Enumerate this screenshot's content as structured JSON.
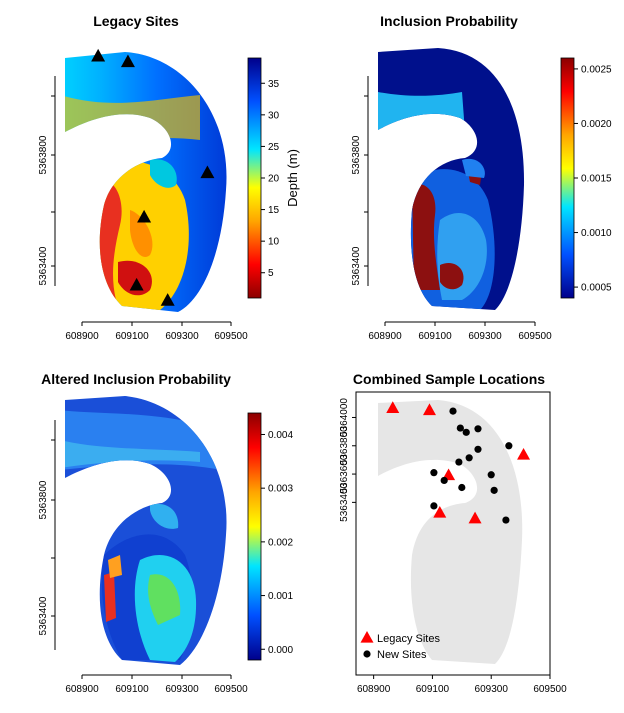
{
  "chart_data": [
    {
      "type": "heatmap",
      "title": "Legacy Sites",
      "x_ticks": [
        "608900",
        "609100",
        "609300",
        "609500"
      ],
      "y_ticks": [
        "5363400",
        "5363800"
      ],
      "colorbar_label": "Depth (m)",
      "colorbar_ticks": [
        "5",
        "10",
        "15",
        "20",
        "25",
        "30",
        "35"
      ],
      "colorbar_range": [
        1,
        39
      ],
      "points": [
        {
          "x": 608965,
          "y": 5364155
        },
        {
          "x": 609085,
          "y": 5364135
        },
        {
          "x": 609405,
          "y": 5363735
        },
        {
          "x": 609150,
          "y": 5363575
        },
        {
          "x": 609120,
          "y": 5363330
        },
        {
          "x": 609245,
          "y": 5363275
        }
      ],
      "point_symbol": "black-triangle"
    },
    {
      "type": "heatmap",
      "title": "Inclusion Probability",
      "x_ticks": [
        "608900",
        "609100",
        "609300",
        "609500"
      ],
      "y_ticks": [
        "5363400",
        "5363800"
      ],
      "colorbar_ticks": [
        "0.0005",
        "0.0010",
        "0.0015",
        "0.0020",
        "0.0025"
      ],
      "colorbar_range": [
        0.0004,
        0.0026
      ]
    },
    {
      "type": "heatmap",
      "title": "Altered Inclusion Probability",
      "x_ticks": [
        "608900",
        "609100",
        "609300",
        "609500"
      ],
      "y_ticks": [
        "5363400",
        "5363800"
      ],
      "colorbar_ticks": [
        "0.000",
        "0.001",
        "0.002",
        "0.003",
        "0.004"
      ],
      "colorbar_range": [
        -0.0002,
        0.0044
      ]
    },
    {
      "type": "scatter",
      "title": "Combined Sample Locations",
      "x_ticks": [
        "608900",
        "609100",
        "609300",
        "609500"
      ],
      "y_ticks": [
        "5363400",
        "5363600",
        "5363800",
        "5364000"
      ],
      "xlim": [
        608840,
        609500
      ],
      "ylim": [
        5362180,
        5364180
      ],
      "legend_position": "bottom-left",
      "series": [
        {
          "name": "Legacy Sites",
          "symbol": "triangle",
          "color": "#ff0000",
          "x": [
            608965,
            609090,
            609410,
            609155,
            609125,
            609245
          ],
          "y": [
            5364065,
            5364050,
            5363735,
            5363590,
            5363325,
            5363285
          ]
        },
        {
          "name": "New Sites",
          "symbol": "circle",
          "color": "#000000",
          "x": [
            609170,
            609195,
            609215,
            609255,
            609360,
            609255,
            609225,
            609190,
            609105,
            609300,
            609140,
            609200,
            609310,
            609105,
            609350
          ],
          "y": [
            5364045,
            5363925,
            5363895,
            5363920,
            5363800,
            5363775,
            5363715,
            5363685,
            5363610,
            5363595,
            5363555,
            5363505,
            5363485,
            5363375,
            5363275
          ]
        }
      ]
    }
  ],
  "colors": {
    "legacy_marker": "#ff0000",
    "new_marker": "#000000",
    "study_area": "#e6e6e6",
    "colorscale": [
      "#8b0000",
      "#ff0000",
      "#ffa500",
      "#ffff00",
      "#00ffff",
      "#0000ff",
      "#00008b"
    ]
  }
}
